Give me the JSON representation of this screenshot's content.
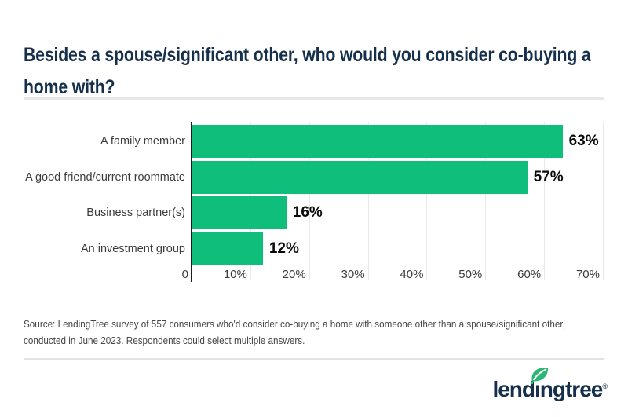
{
  "title": {
    "line1": "Besides a spouse/significant other, who would you consider co-buying a",
    "line2": "home with?"
  },
  "chart_data": {
    "type": "bar",
    "orientation": "horizontal",
    "title": "Besides a spouse/significant other, who would you consider co-buying a home with?",
    "categories": [
      "A family member",
      "A good friend/current roommate",
      "Business partner(s)",
      "An investment group"
    ],
    "values": [
      63,
      57,
      16,
      12
    ],
    "value_labels": [
      "63%",
      "57%",
      "16%",
      "12%"
    ],
    "x_ticks": [
      "0",
      "10%",
      "20%",
      "30%",
      "40%",
      "50%",
      "60%",
      "70%"
    ],
    "xlim": [
      0,
      70
    ],
    "grid": "vertical-light",
    "xlabel": "",
    "ylabel": ""
  },
  "source": {
    "line1": "Source: LendingTree survey of 557 consumers who'd consider co-buying a home with someone other than a spouse/significant other,",
    "line2": "conducted in June 2023. Respondents could select multiple answers."
  },
  "logo": {
    "text": "lendingtree",
    "display_text": "lendıngtree",
    "registered_mark": "®"
  },
  "colors": {
    "bar_green": "#0fbe7b",
    "navy": "#16304b",
    "leaf_green": "#2cb574"
  }
}
